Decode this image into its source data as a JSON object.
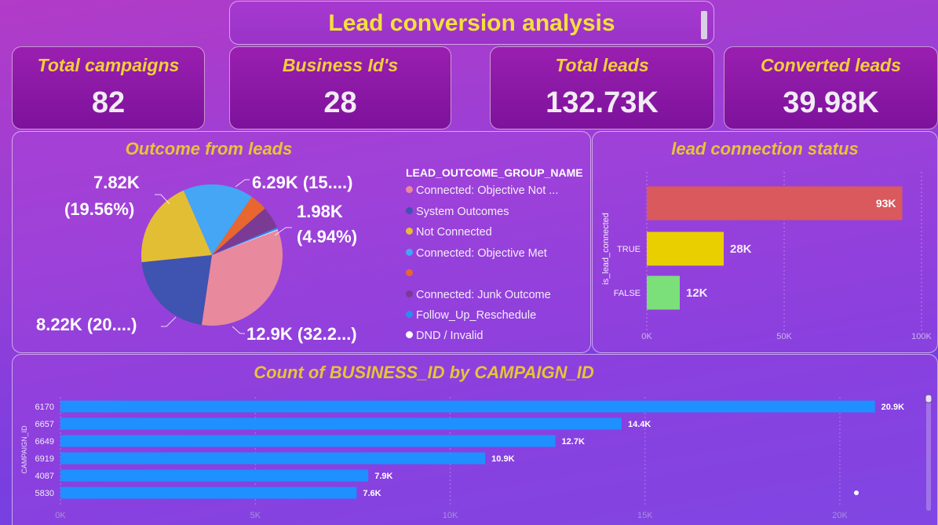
{
  "header": {
    "title": "Lead conversion analysis"
  },
  "kpis": [
    {
      "label": "Total campaigns",
      "value": "82"
    },
    {
      "label": "Business Id's",
      "value": "28"
    },
    {
      "label": "Total leads",
      "value": "132.73K"
    },
    {
      "label": "Converted leads",
      "value": "39.98K"
    }
  ],
  "pie_panel": {
    "title": "Outcome from leads",
    "legend_title": "LEAD_OUTCOME_GROUP_NAME",
    "legend": [
      {
        "name": "Connected: Objective Not ...",
        "color": "#e8899e"
      },
      {
        "name": "System Outcomes",
        "color": "#3f53b0"
      },
      {
        "name": "Not Connected",
        "color": "#e2be35"
      },
      {
        "name": "Connected: Objective Met",
        "color": "#44a6f5"
      },
      {
        "name": "",
        "color": "#e8672f"
      },
      {
        "name": "Connected: Junk Outcome",
        "color": "#7b3b95"
      },
      {
        "name": "Follow_Up_Reschedule",
        "color": "#2a8df0"
      },
      {
        "name": "DND / Invalid",
        "color": "#ffffff"
      }
    ],
    "labels": {
      "a": "7.82K",
      "a2": "(19.56%)",
      "b": "6.29K (15....)",
      "c": "1.98K",
      "c2": "(4.94%)",
      "d": "8.22K (20....)",
      "e": "12.9K (32.2...)"
    }
  },
  "bar_panel": {
    "title": "lead connection status",
    "axis_title": "is_lead_connected",
    "ticks": [
      "0K",
      "50K",
      "100K"
    ]
  },
  "campaign_panel": {
    "title": "Count of BUSINESS_ID by CAMPAIGN_ID",
    "axis_title": "CAMPAIGN_ID",
    "ticks": [
      "0K",
      "5K",
      "10K",
      "15K",
      "20K"
    ]
  },
  "chart_data": [
    {
      "type": "pie",
      "title": "Outcome from leads",
      "legend_title": "LEAD_OUTCOME_GROUP_NAME",
      "slices": [
        {
          "name": "Connected: Objective Not ...",
          "value": 12.9,
          "unit": "K",
          "color": "#e8899e"
        },
        {
          "name": "System Outcomes",
          "value": 8.22,
          "unit": "K",
          "color": "#3f53b0"
        },
        {
          "name": "Not Connected",
          "value": 7.82,
          "unit": "K",
          "color": "#e2be35"
        },
        {
          "name": "Connected: Objective Met",
          "value": 6.29,
          "unit": "K",
          "color": "#44a6f5"
        },
        {
          "name": "",
          "value": 1.55,
          "unit": "K",
          "color": "#e8672f"
        },
        {
          "name": "Connected: Junk Outcome",
          "value": 1.98,
          "unit": "K",
          "color": "#7b3b95"
        },
        {
          "name": "Follow_Up_Reschedule",
          "value": 0.18,
          "unit": "K",
          "color": "#2a8df0"
        },
        {
          "name": "DND / Invalid",
          "value": 0.07,
          "unit": "K",
          "color": "#ffffff"
        }
      ]
    },
    {
      "type": "bar",
      "orientation": "horizontal",
      "title": "lead connection status",
      "ylabel": "is_lead_connected",
      "categories": [
        "",
        "TRUE",
        "FALSE"
      ],
      "values": [
        93,
        28,
        12
      ],
      "data_labels": [
        "93K",
        "28K",
        "12K"
      ],
      "colors": [
        "#d9595d",
        "#e9cf00",
        "#7be07a"
      ],
      "xlim": [
        0,
        100
      ]
    },
    {
      "type": "bar",
      "orientation": "horizontal",
      "title": "Count of BUSINESS_ID by CAMPAIGN_ID",
      "ylabel": "CAMPAIGN_ID",
      "categories": [
        "6170",
        "6657",
        "6649",
        "6919",
        "4087",
        "5830"
      ],
      "values": [
        20.9,
        14.4,
        12.7,
        10.9,
        7.9,
        7.6
      ],
      "data_labels": [
        "20.9K",
        "14.4K",
        "12.7K",
        "10.9K",
        "7.9K",
        "7.6K"
      ],
      "color": "#1e90ff",
      "xlim": [
        0,
        20
      ]
    }
  ]
}
